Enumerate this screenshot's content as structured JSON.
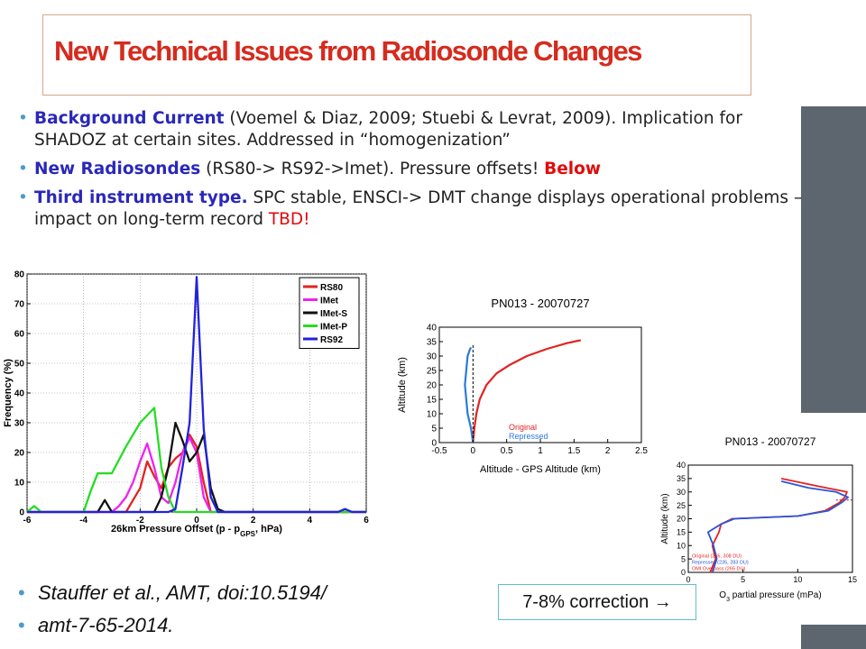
{
  "slide": {
    "title": "New Technical Issues from Radiosonde Changes",
    "bullets": [
      {
        "lead": "Background Current",
        "rest": " (Voemel & Diaz, 2009; Stuebi & Levrat, 2009).  Implication for SHADOZ at certain sites.  Addressed in “homogenization”"
      },
      {
        "lead": "New Radiosondes",
        "rest": " (RS80-> RS92->Imet). Pressure offsets!  ",
        "tail": "Below"
      },
      {
        "lead": "Third instrument type.",
        "rest": "  SPC stable, ENSCI-> DMT change displays operational problems  – impact on long-term record ",
        "tail": "TBD!"
      }
    ],
    "refs": [
      "Stauffer et al., AMT, doi:10.5194/",
      "amt-7-65-2014."
    ],
    "note": "7-8% correction →"
  },
  "chart_data": [
    {
      "type": "line",
      "title": "",
      "xlabel": "26km Pressure Offset (p - p",
      "xlabel_sub": "GPS",
      "xlabel_end": ", hPa)",
      "ylabel": "Frequency (%)",
      "xlim": [
        -6,
        6
      ],
      "ylim": [
        0,
        80
      ],
      "xticks": [
        "-6",
        "-4",
        "-2",
        "0",
        "2",
        "4",
        "6"
      ],
      "yticks": [
        "0",
        "10",
        "20",
        "30",
        "40",
        "50",
        "60",
        "70",
        "80"
      ],
      "grid": true,
      "legend": "top-right",
      "series": [
        {
          "name": "RS80",
          "color": "#e32222",
          "x": [
            -6,
            -2.5,
            -2.25,
            -2,
            -1.75,
            -1.5,
            -1.25,
            -1,
            -0.75,
            -0.5,
            -0.25,
            0,
            0.25,
            0.5,
            1,
            6
          ],
          "y": [
            0,
            0,
            4,
            8,
            17,
            12,
            8,
            15,
            18,
            20,
            26,
            22,
            10,
            0,
            0,
            0
          ]
        },
        {
          "name": "IMet",
          "color": "#ee22ee",
          "x": [
            -6,
            -3,
            -2.75,
            -2.5,
            -2.25,
            -2,
            -1.75,
            -1.5,
            -1.25,
            -1,
            -0.75,
            -0.5,
            -0.25,
            0,
            0.25,
            0.5,
            6
          ],
          "y": [
            0,
            0,
            2,
            5,
            10,
            17,
            23,
            15,
            5,
            3,
            10,
            20,
            25,
            20,
            5,
            0,
            0
          ]
        },
        {
          "name": "IMet-S",
          "color": "#111111",
          "x": [
            -6,
            -3.5,
            -3.25,
            -3,
            -2.75,
            -2.5,
            -1.5,
            -1.25,
            -1,
            -0.75,
            -0.5,
            -0.25,
            0,
            0.25,
            0.5,
            0.75,
            1,
            6
          ],
          "y": [
            0,
            0,
            4,
            0,
            0,
            0,
            0,
            5,
            15,
            30,
            24,
            17,
            20,
            26,
            8,
            1,
            0,
            0
          ]
        },
        {
          "name": "IMet-P",
          "color": "#22dd22",
          "x": [
            -6,
            -5.75,
            -5.5,
            -5.25,
            -4,
            -3.75,
            -3.5,
            -3,
            -2.5,
            -2,
            -1.5,
            -1.25,
            -1,
            -0.75,
            -0.5,
            -0.25,
            0,
            6
          ],
          "y": [
            0,
            2,
            0,
            0,
            0,
            7,
            13,
            13,
            22,
            30,
            35,
            15,
            5,
            0,
            0,
            0,
            0,
            0
          ]
        },
        {
          "name": "RS92",
          "color": "#2222dd",
          "x": [
            -6,
            -1,
            -0.75,
            -0.5,
            -0.25,
            0,
            0.25,
            0.5,
            0.75,
            5,
            5.25,
            5.5,
            6
          ],
          "y": [
            0,
            0,
            1,
            15,
            30,
            79,
            28,
            5,
            0,
            0,
            1,
            0,
            0
          ]
        }
      ]
    },
    {
      "type": "line",
      "title": "PN013 - 20070727",
      "xlabel": "Altitude - GPS Altitude (km)",
      "ylabel": "Altitude (km)",
      "xlim": [
        -0.5,
        2.5
      ],
      "ylim": [
        0,
        40
      ],
      "xticks": [
        "-0.5",
        "0",
        "0.5",
        "1",
        "1.5",
        "2",
        "2.5"
      ],
      "yticks": [
        "0",
        "5",
        "10",
        "15",
        "20",
        "25",
        "30",
        "35",
        "40"
      ],
      "grid": false,
      "legend": "bottom-right",
      "series": [
        {
          "name": "Original",
          "color": "#e32222",
          "x": [
            0,
            0.02,
            0.05,
            0.1,
            0.2,
            0.35,
            0.55,
            0.8,
            1.1,
            1.4,
            1.6
          ],
          "y": [
            0,
            5,
            10,
            15,
            20,
            24,
            27,
            30,
            32.5,
            34.5,
            35.5
          ]
        },
        {
          "name": "Repressed",
          "color": "#2b7ad8",
          "x": [
            0,
            -0.03,
            -0.08,
            -0.1,
            -0.12,
            -0.1,
            -0.08,
            -0.05,
            -0.03
          ],
          "y": [
            0,
            5,
            10,
            15,
            20,
            25,
            30,
            32,
            33
          ]
        }
      ]
    },
    {
      "type": "line",
      "title": "PN013 - 20070727",
      "xlabel": "O",
      "xlabel_sub": "3",
      "xlabel_end": " partial pressure (mPa)",
      "ylabel": "Altitude (km)",
      "xlim": [
        0,
        15
      ],
      "ylim": [
        0,
        40
      ],
      "xticks": [
        "0",
        "5",
        "10",
        "15"
      ],
      "yticks": [
        "0",
        "5",
        "10",
        "15",
        "20",
        "25",
        "30",
        "35",
        "40"
      ],
      "grid": false,
      "legend": "bottom-left",
      "series": [
        {
          "name": "Original (255, 308 DU)",
          "color": "#e32222",
          "x": [
            2,
            2.5,
            2.2,
            2.8,
            3,
            4,
            10,
            12.5,
            13.8,
            14.3,
            14.5,
            12,
            8.5
          ],
          "y": [
            0,
            5,
            10,
            15,
            18,
            20,
            21,
            23,
            26,
            28,
            30,
            32,
            35
          ]
        },
        {
          "name": "Repressed (235, 283 DU)",
          "color": "#2b55d8",
          "x": [
            2.2,
            2.6,
            2.3,
            1.8,
            3,
            4.2,
            10,
            12.8,
            14,
            14.6,
            13.5,
            11,
            8.5
          ],
          "y": [
            0,
            5,
            10,
            15,
            18,
            20,
            21,
            23,
            26,
            28,
            30,
            31.5,
            34
          ]
        },
        {
          "name": "OMI Overpass (265 DU)",
          "color": "#e32222",
          "x": [],
          "y": []
        }
      ]
    }
  ]
}
